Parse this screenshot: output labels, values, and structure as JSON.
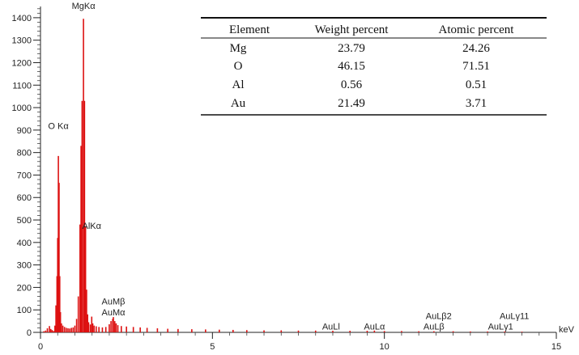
{
  "chart_data": {
    "type": "bar",
    "title": "",
    "xlabel": "",
    "ylabel": "",
    "x_unit": "keV",
    "xlim": [
      0,
      15
    ],
    "ylim": [
      0,
      1450
    ],
    "x_ticks": [
      0,
      5,
      10,
      15
    ],
    "y_ticks": [
      0,
      100,
      200,
      300,
      400,
      500,
      600,
      700,
      800,
      900,
      1000,
      1100,
      1200,
      1300,
      1400
    ],
    "grid": false,
    "color": "#dd1111",
    "spectrum": [
      [
        0.1,
        5
      ],
      [
        0.15,
        8
      ],
      [
        0.2,
        18
      ],
      [
        0.26,
        28
      ],
      [
        0.3,
        15
      ],
      [
        0.34,
        10
      ],
      [
        0.38,
        6
      ],
      [
        0.42,
        30
      ],
      [
        0.45,
        120
      ],
      [
        0.48,
        250
      ],
      [
        0.5,
        420
      ],
      [
        0.52,
        785
      ],
      [
        0.54,
        665
      ],
      [
        0.56,
        250
      ],
      [
        0.58,
        90
      ],
      [
        0.61,
        40
      ],
      [
        0.65,
        30
      ],
      [
        0.7,
        24
      ],
      [
        0.75,
        20
      ],
      [
        0.8,
        18
      ],
      [
        0.85,
        17
      ],
      [
        0.9,
        20
      ],
      [
        0.95,
        22
      ],
      [
        1.0,
        30
      ],
      [
        1.05,
        60
      ],
      [
        1.1,
        160
      ],
      [
        1.15,
        480
      ],
      [
        1.18,
        830
      ],
      [
        1.21,
        1030
      ],
      [
        1.25,
        1395
      ],
      [
        1.28,
        1030
      ],
      [
        1.31,
        470
      ],
      [
        1.34,
        190
      ],
      [
        1.37,
        80
      ],
      [
        1.4,
        45
      ],
      [
        1.45,
        35
      ],
      [
        1.49,
        70
      ],
      [
        1.52,
        40
      ],
      [
        1.56,
        30
      ],
      [
        1.62,
        27
      ],
      [
        1.7,
        24
      ],
      [
        1.8,
        22
      ],
      [
        1.9,
        24
      ],
      [
        2.0,
        36
      ],
      [
        2.05,
        50
      ],
      [
        2.1,
        60
      ],
      [
        2.12,
        68
      ],
      [
        2.16,
        50
      ],
      [
        2.2,
        40
      ],
      [
        2.25,
        32
      ],
      [
        2.35,
        28
      ],
      [
        2.5,
        26
      ],
      [
        2.7,
        24
      ],
      [
        2.9,
        22
      ],
      [
        3.1,
        20
      ],
      [
        3.4,
        18
      ],
      [
        3.7,
        16
      ],
      [
        4.0,
        15
      ],
      [
        4.4,
        14
      ],
      [
        4.8,
        13
      ],
      [
        5.2,
        12
      ],
      [
        5.6,
        11
      ],
      [
        6.0,
        10
      ],
      [
        6.5,
        9
      ],
      [
        7.0,
        9
      ],
      [
        7.5,
        8
      ],
      [
        8.0,
        8
      ],
      [
        8.5,
        7
      ],
      [
        9.0,
        7
      ],
      [
        9.5,
        7
      ],
      [
        9.71,
        8
      ],
      [
        10.0,
        6
      ],
      [
        10.5,
        6
      ],
      [
        11.0,
        5
      ],
      [
        11.44,
        5
      ],
      [
        12.0,
        5
      ],
      [
        12.5,
        4
      ],
      [
        13.0,
        4
      ],
      [
        13.5,
        4
      ],
      [
        14.0,
        3
      ]
    ],
    "peak_labels": [
      {
        "text": "MgKα",
        "x": 1.25,
        "y": 1440
      },
      {
        "text": "O Kα",
        "x": 0.52,
        "y": 905
      },
      {
        "text": "AlKα",
        "x": 1.49,
        "y": 460
      },
      {
        "text": "AuMβ",
        "x": 2.12,
        "y": 125
      },
      {
        "text": "AuMα",
        "x": 2.12,
        "y": 75
      },
      {
        "text": "AuLl",
        "x": 8.45,
        "y": 12
      },
      {
        "text": "AuLα",
        "x": 9.71,
        "y": 12
      },
      {
        "text": "AuLβ2",
        "x": 11.58,
        "y": 60
      },
      {
        "text": "AuLβ",
        "x": 11.44,
        "y": 12
      },
      {
        "text": "AuLγ11",
        "x": 13.78,
        "y": 60
      },
      {
        "text": "AuLγ1",
        "x": 13.38,
        "y": 12
      }
    ]
  },
  "table": {
    "headers": [
      "Element",
      "Weight percent",
      "Atomic percent"
    ],
    "rows": [
      [
        "Mg",
        "23.79",
        "24.26"
      ],
      [
        "O",
        "46.15",
        "71.51"
      ],
      [
        "Al",
        "0.56",
        "0.51"
      ],
      [
        "Au",
        "21.49",
        "3.71"
      ]
    ]
  }
}
